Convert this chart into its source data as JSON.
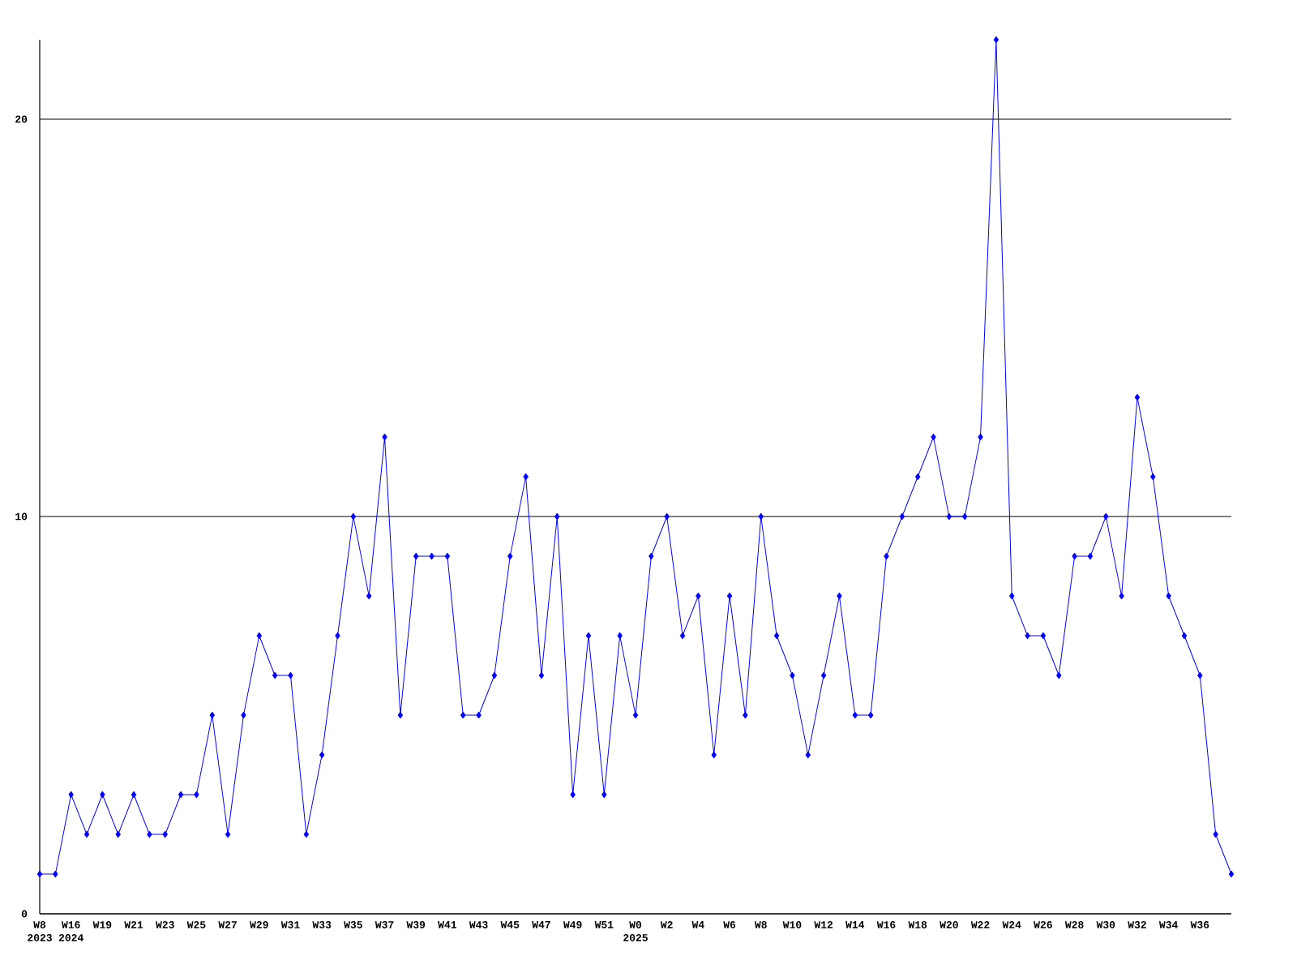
{
  "chart_data": {
    "type": "line",
    "categories": [
      "W8 2023",
      null,
      "W16 2024",
      null,
      "W19",
      null,
      "W21",
      null,
      "W23",
      null,
      "W25",
      null,
      "W27",
      null,
      "W29",
      null,
      "W31",
      null,
      "W33",
      null,
      "W35",
      null,
      "W37",
      null,
      "W39",
      null,
      "W41",
      null,
      "W43",
      null,
      "W45",
      null,
      "W47",
      null,
      "W49",
      null,
      "W51",
      null,
      "W0 2025",
      null,
      "W2",
      null,
      "W4",
      null,
      "W6",
      null,
      "W8",
      null,
      "W10",
      null,
      "W12",
      null,
      "W14",
      null,
      "W16",
      null,
      "W18",
      null,
      "W20",
      null,
      "W22",
      null,
      "W24",
      null,
      "W26",
      null,
      "W28",
      null,
      "W30",
      null,
      "W32",
      null,
      "W34",
      null,
      "W36",
      null,
      null
    ],
    "values": [
      1,
      1,
      3,
      2,
      3,
      2,
      3,
      2,
      2,
      3,
      3,
      5,
      2,
      5,
      7,
      6,
      6,
      2,
      4,
      7,
      10,
      8,
      12,
      5,
      9,
      9,
      9,
      5,
      5,
      6,
      9,
      11,
      6,
      10,
      3,
      7,
      3,
      7,
      5,
      9,
      10,
      7,
      8,
      4,
      8,
      5,
      10,
      7,
      6,
      4,
      6,
      8,
      5,
      5,
      9,
      10,
      11,
      12,
      10,
      10,
      12,
      22,
      8,
      7,
      7,
      6,
      9,
      9,
      10,
      8,
      13,
      11,
      8,
      7,
      6,
      2,
      1
    ],
    "color": "#0000ff",
    "ylim": [
      0,
      22
    ],
    "yticks": [
      0,
      10,
      20
    ],
    "grid": "y",
    "marker": "diamond",
    "line_style": "solid"
  }
}
